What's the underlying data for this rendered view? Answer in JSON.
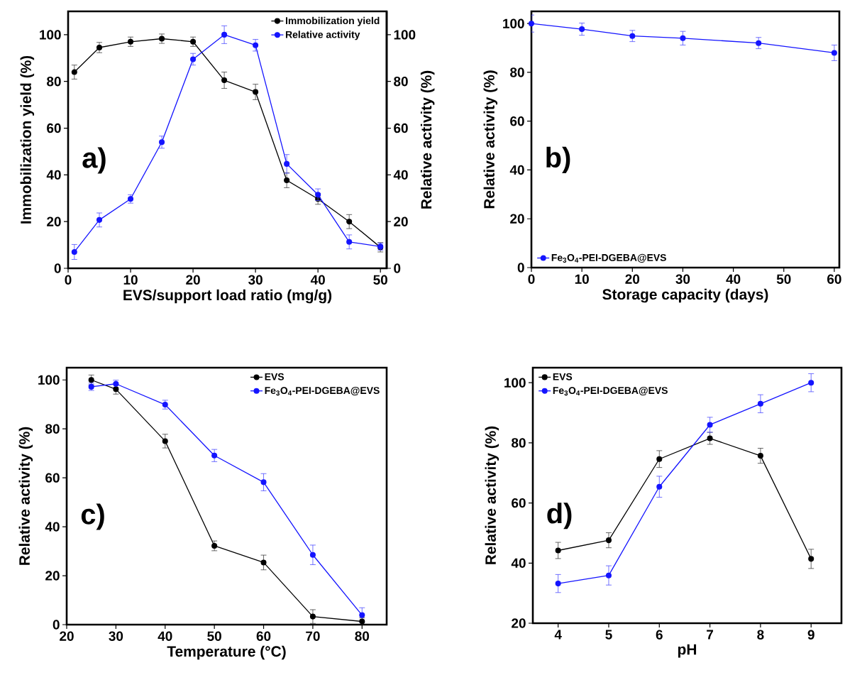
{
  "chart_data": [
    {
      "type": "line",
      "xlabel": "EVS/support load ratio (mg/g)",
      "ylabel": "Immobilization yield (%)",
      "y2label": "Relative activity (%)",
      "x": [
        1,
        5,
        10,
        15,
        20,
        25,
        30,
        35,
        40,
        45,
        50
      ],
      "xlim": [
        0,
        51
      ],
      "xticks": [
        0,
        10,
        20,
        30,
        40,
        50
      ],
      "ylim": [
        0,
        110
      ],
      "yticks": [
        0,
        20,
        40,
        60,
        80,
        100
      ],
      "y2lim": [
        0,
        110
      ],
      "y2ticks": [
        0,
        20,
        40,
        60,
        80,
        100
      ],
      "marker": "circle",
      "line_style": "solid",
      "legend": "top right",
      "annotations": [
        "a)"
      ],
      "series": [
        {
          "name": "Immobilization yield",
          "color": "#000000",
          "values": [
            84,
            94.5,
            97,
            98.3,
            97,
            80.5,
            75.5,
            37.7,
            29.7,
            20,
            9
          ],
          "errors": [
            3,
            2.2,
            2,
            2,
            2,
            3.5,
            3.3,
            3.2,
            2.3,
            3,
            2
          ]
        },
        {
          "name": "Relative activity",
          "color": "#1414ff",
          "axis": "y2",
          "values": [
            7,
            20.7,
            29.7,
            54,
            89.5,
            100,
            95.5,
            44.7,
            31.5,
            11.3,
            9.3
          ],
          "errors": [
            3.2,
            3,
            1.8,
            2.6,
            2.5,
            3.8,
            2.5,
            4,
            2.5,
            3,
            1.5
          ]
        }
      ]
    },
    {
      "type": "line",
      "xlabel": "Storage capacity (days)",
      "ylabel": "Relative activity (%)",
      "x": [
        0,
        10,
        20,
        30,
        45,
        60
      ],
      "xlim": [
        0,
        61
      ],
      "xticks": [
        0,
        10,
        20,
        30,
        40,
        50,
        60
      ],
      "ylim": [
        0,
        105
      ],
      "yticks": [
        0,
        20,
        40,
        60,
        80,
        100
      ],
      "marker": "circle",
      "line_style": "solid",
      "legend": "bottom left",
      "annotations": [
        "b)"
      ],
      "series": [
        {
          "name": "Fe$_{3}$O$_{4}$-PEI-DGEBA@EVS",
          "color": "#1414ff",
          "values": [
            100,
            97.7,
            94.9,
            94,
            92,
            88
          ],
          "errors": [
            3.5,
            2.5,
            2.3,
            2.8,
            2.3,
            3.2
          ]
        }
      ]
    },
    {
      "type": "line",
      "xlabel": "Temperature (°C)",
      "ylabel": "Relative activity (%)",
      "x": [
        25,
        30,
        40,
        50,
        60,
        70,
        80
      ],
      "xlim": [
        20,
        85
      ],
      "xticks": [
        20,
        30,
        40,
        50,
        60,
        70,
        80
      ],
      "ylim": [
        0,
        105
      ],
      "yticks": [
        0,
        20,
        40,
        60,
        80,
        100
      ],
      "marker": "circle",
      "line_style": "solid",
      "legend": "top right",
      "annotations": [
        "c)"
      ],
      "series": [
        {
          "name": "EVS",
          "color": "#000000",
          "values": [
            100,
            96.2,
            75,
            32.2,
            25.4,
            3.3,
            1.3
          ],
          "errors": [
            2,
            2,
            2.8,
            2,
            3,
            2.8,
            1.5
          ]
        },
        {
          "name": "Fe$_{3}$O$_{4}$-PEI-DGEBA@EVS",
          "color": "#1414ff",
          "values": [
            97.2,
            98.4,
            89.9,
            69.1,
            58.2,
            28.5,
            3.9
          ],
          "errors": [
            1.5,
            1.5,
            1.8,
            2.5,
            3.5,
            4,
            3
          ]
        }
      ]
    },
    {
      "type": "line",
      "xlabel": "pH",
      "ylabel": "Relative activity (%)",
      "x": [
        4,
        5,
        6,
        7,
        8,
        9
      ],
      "xlim": [
        3.5,
        9.6
      ],
      "xticks": [
        4,
        5,
        6,
        7,
        8,
        9
      ],
      "ylim": [
        20,
        105
      ],
      "yticks": [
        20,
        40,
        60,
        80,
        100
      ],
      "marker": "circle",
      "line_style": "solid",
      "legend": "top left",
      "annotations": [
        "d)"
      ],
      "series": [
        {
          "name": "EVS",
          "color": "#000000",
          "values": [
            44.2,
            47.6,
            74.6,
            81.5,
            75.7,
            41.4
          ],
          "errors": [
            2.7,
            2.5,
            2.8,
            2,
            2.5,
            3.2
          ]
        },
        {
          "name": "Fe$_{3}$O$_{4}$-PEI-DGEBA@EVS",
          "color": "#1414ff",
          "values": [
            33.2,
            35.9,
            65.4,
            86,
            93,
            100
          ],
          "errors": [
            3,
            3.2,
            3.5,
            2.5,
            3,
            3
          ]
        }
      ]
    }
  ]
}
